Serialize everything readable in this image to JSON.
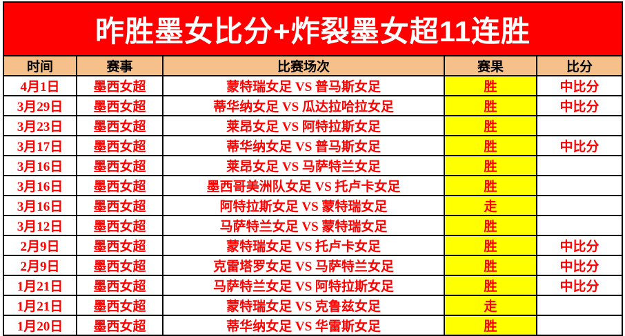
{
  "banner": {
    "title": "昨胜墨女比分+炸裂墨女超11连胜"
  },
  "colors": {
    "banner_bg": "#FE0000",
    "banner_text": "#FFFFFF",
    "header_bg": "#F5C08A",
    "result_bg": "#FFFF00",
    "data_text": "#FF0000",
    "border": "#000000"
  },
  "table": {
    "headers": [
      "时间",
      "赛事",
      "比赛场次",
      "赛果",
      "比分"
    ],
    "rows": [
      {
        "date": "4月1日",
        "league": "墨西女超",
        "match": "蒙特瑞女足 VS 普马斯女足",
        "result": "胜",
        "score": "中比分"
      },
      {
        "date": "3月29日",
        "league": "墨西女超",
        "match": "蒂华纳女足 VS 瓜达拉哈拉女足",
        "result": "胜",
        "score": "中比分"
      },
      {
        "date": "3月23日",
        "league": "墨西女超",
        "match": "莱昂女足 VS 阿特拉斯女足",
        "result": "胜",
        "score": ""
      },
      {
        "date": "3月17日",
        "league": "墨西女超",
        "match": "蒂华纳女足 VS 普马斯女足",
        "result": "胜",
        "score": "中比分"
      },
      {
        "date": "3月16日",
        "league": "墨西女超",
        "match": "莱昂女足 VS 马萨特兰女足",
        "result": "胜",
        "score": ""
      },
      {
        "date": "3月16日",
        "league": "墨西女超",
        "match": "墨西哥美洲队女足 VS 托卢卡女足",
        "result": "胜",
        "score": ""
      },
      {
        "date": "3月16日",
        "league": "墨西女超",
        "match": "阿特拉斯女足 VS 蒙特瑞女足",
        "result": "走",
        "score": ""
      },
      {
        "date": "3月12日",
        "league": "墨西女超",
        "match": "马萨特兰女足 VS 蒙特瑞女足",
        "result": "胜",
        "score": ""
      },
      {
        "date": "2月9日",
        "league": "墨西女超",
        "match": "蒙特瑞女足 VS 托卢卡女足",
        "result": "胜",
        "score": "中比分"
      },
      {
        "date": "2月9日",
        "league": "墨西女超",
        "match": "克雷塔罗女足 VS 马萨特兰女足",
        "result": "胜",
        "score": "中比分"
      },
      {
        "date": "1月21日",
        "league": "墨西女超",
        "match": "马萨特兰女足 VS 阿特拉斯女足",
        "result": "胜",
        "score": "中比分"
      },
      {
        "date": "1月21日",
        "league": "墨西女超",
        "match": "蒙特瑞女足 VS 克鲁兹女足",
        "result": "走",
        "score": ""
      },
      {
        "date": "1月20日",
        "league": "墨西女超",
        "match": "蒂华纳女足 VS 华雷斯女足",
        "result": "胜",
        "score": ""
      }
    ]
  }
}
